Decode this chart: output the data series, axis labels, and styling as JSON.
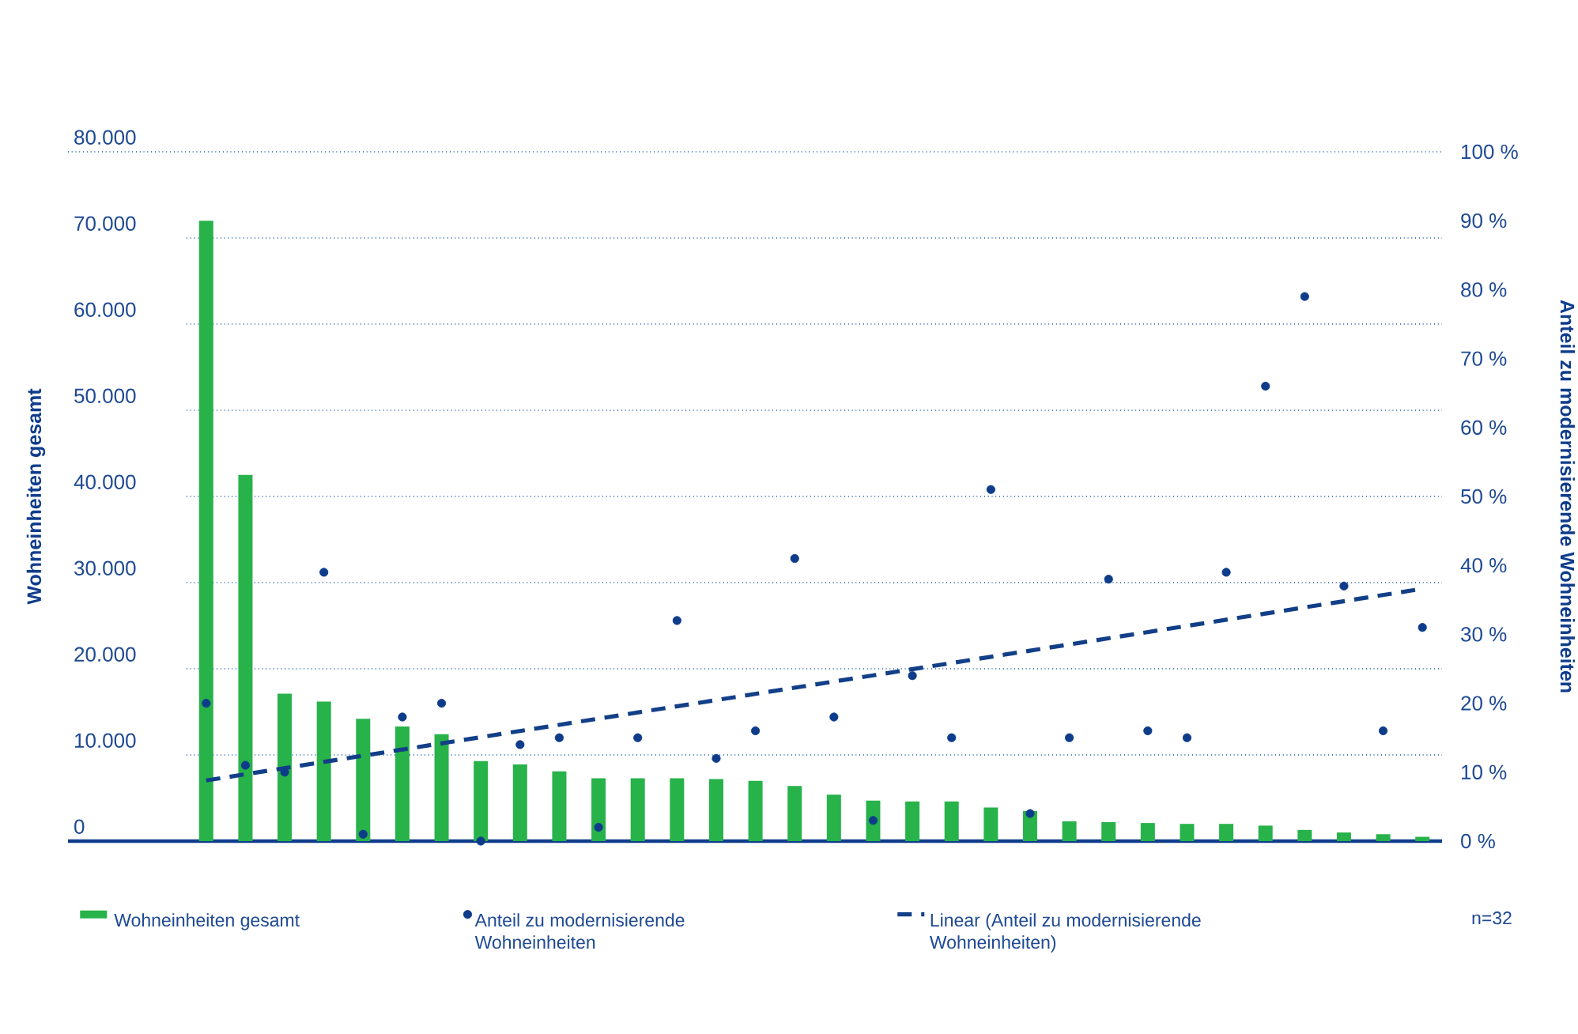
{
  "chart_data": {
    "type": "bar",
    "categories": [
      null,
      null,
      null,
      null,
      null,
      null,
      null,
      null,
      null,
      null,
      null,
      null,
      null,
      null,
      null,
      null,
      null,
      null,
      null,
      null,
      null,
      null,
      null,
      null,
      null,
      null,
      null,
      null,
      null,
      null,
      null,
      null
    ],
    "series": [
      {
        "name": "Wohneinheiten gesamt",
        "color": "#27b24a",
        "values": [
          72000,
          42500,
          17100,
          16200,
          14200,
          13300,
          12400,
          9300,
          8900,
          8100,
          7300,
          7300,
          7300,
          7200,
          7000,
          6400,
          5400,
          4700,
          4600,
          4600,
          3900,
          3500,
          2300,
          2200,
          2100,
          2000,
          2000,
          1800,
          1300,
          1000,
          800,
          500
        ]
      },
      {
        "name": "Anteil zu modernisierende Wohneinheiten",
        "type": "scatter",
        "axis": "y2",
        "marker": "circle",
        "color": "#0e3c8a",
        "values": [
          20,
          11,
          10,
          39,
          1,
          18,
          20,
          0,
          14,
          15,
          2,
          15,
          32,
          12,
          16,
          41,
          18,
          3,
          24,
          15,
          51,
          4,
          15,
          38,
          16,
          15,
          39,
          66,
          79,
          37,
          16,
          31
        ]
      },
      {
        "name": "Linear (Anteil zu modernisierende Wohneinheiten)",
        "type": "line",
        "axis": "y2",
        "line_style": "dashed",
        "color": "#123f87",
        "values": [
          8.8,
          null,
          null,
          null,
          null,
          null,
          null,
          null,
          null,
          null,
          null,
          null,
          null,
          null,
          null,
          null,
          null,
          null,
          null,
          null,
          null,
          null,
          null,
          null,
          null,
          null,
          null,
          null,
          null,
          null,
          null,
          36.6
        ]
      }
    ],
    "ylim": [
      0,
      80000
    ],
    "yticks": [
      0,
      {
        "value": 10000,
        "label": "10.000"
      },
      {
        "value": 20000,
        "label": "20.000"
      },
      {
        "value": 30000,
        "label": "30.000"
      },
      {
        "value": 40000,
        "label": "40.000"
      },
      {
        "value": 50000,
        "label": "50.000"
      },
      {
        "value": 60000,
        "label": "60.000"
      },
      {
        "value": 70000,
        "label": "70.000"
      },
      {
        "value": 80000,
        "label": "80.000"
      }
    ],
    "y2lim": [
      0,
      100
    ],
    "y2ticks": [
      {
        "value": 0,
        "label": "0 %"
      },
      {
        "value": 10,
        "label": "10 %"
      },
      {
        "value": 20,
        "label": "20 %"
      },
      {
        "value": 30,
        "label": "30 %"
      },
      {
        "value": 40,
        "label": "40 %"
      },
      {
        "value": 50,
        "label": "50 %"
      },
      {
        "value": 60,
        "label": "60 %"
      },
      {
        "value": 70,
        "label": "70 %"
      },
      {
        "value": 80,
        "label": "80 %"
      },
      {
        "value": 90,
        "label": "90 %"
      },
      {
        "value": 100,
        "label": "100 %"
      }
    ],
    "ylabel": "Wohneinheiten gesamt",
    "y2label": "Anteil zu modernisierende Wohneinheiten",
    "grid": "y",
    "legend": "bottom",
    "annotations": [
      "n=32"
    ]
  }
}
